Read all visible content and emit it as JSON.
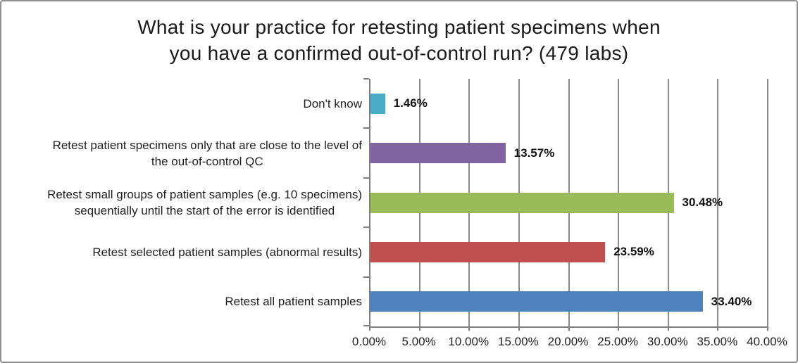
{
  "frame": {
    "background": "#ffffff",
    "border_color": "#8e8e8e"
  },
  "title": {
    "line1": "What is your practice for retesting patient specimens when",
    "line2": "you have a confirmed out-of-control run? (479 labs)"
  },
  "chart_data": {
    "type": "bar",
    "orientation": "horizontal",
    "title": "What is your practice for retesting patient specimens when you have a confirmed out-of-control run? (479 labs)",
    "sample_size_note": "479 labs",
    "categories": [
      "Don't know",
      "Retest patient specimens only that are close to the level of the out-of-control QC",
      "Retest small groups of patient samples (e.g. 10 specimens) sequentially until the start of the error is identified",
      "Retest selected patient samples (abnormal results)",
      "Retest all patient samples"
    ],
    "category_label_lines": [
      [
        "Don't know"
      ],
      [
        "Retest patient specimens only that are close to the level of",
        "the out-of-control QC"
      ],
      [
        "Retest small groups of patient samples (e.g. 10 specimens)",
        "sequentially until the start of the error is identified"
      ],
      [
        "Retest selected patient samples (abnormal results)"
      ],
      [
        "Retest all patient samples"
      ]
    ],
    "values": [
      1.46,
      13.57,
      30.48,
      23.59,
      33.4
    ],
    "value_labels": [
      "1.46%",
      "13.57%",
      "30.48%",
      "23.59%",
      "33.40%"
    ],
    "bar_colors": [
      "#4BACC6",
      "#8064A2",
      "#9BBB59",
      "#C0504D",
      "#4F81BD"
    ],
    "xlabel": "",
    "ylabel": "",
    "xlim": [
      0,
      40
    ],
    "x_ticks": [
      "0.00%",
      "5.00%",
      "10.00%",
      "15.00%",
      "20.00%",
      "25.00%",
      "30.00%",
      "35.00%",
      "40.00%"
    ],
    "grid": "vertical-major-on",
    "legend": "none",
    "colors": {
      "gridline": "#8a8a8a",
      "axis": "#7f7f7f",
      "text": "#1f1f1f",
      "value_label": "#111111"
    }
  }
}
